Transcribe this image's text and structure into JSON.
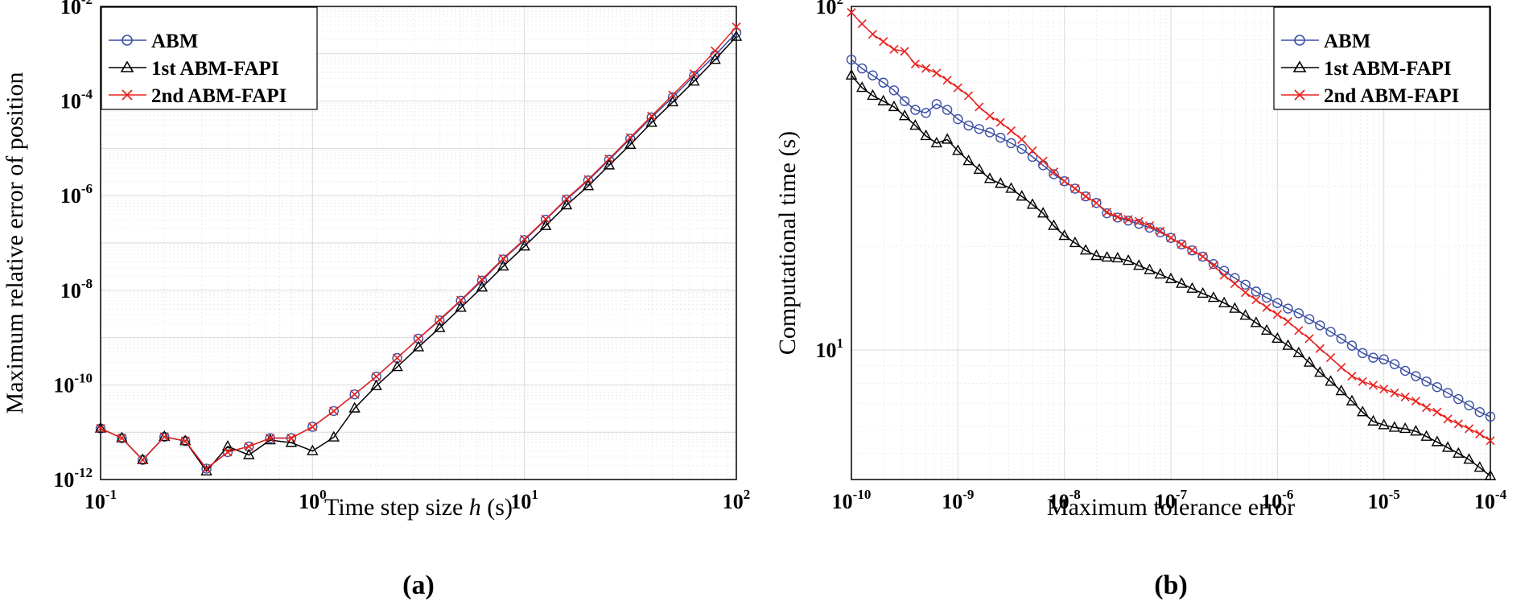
{
  "colors": {
    "abm": "#3a4fa3",
    "fapi1": "#000000",
    "fapi2": "#e8221d",
    "grid": "#d9d9d9",
    "minor_grid": "#ececec"
  },
  "chart_data": [
    {
      "id": "a",
      "type": "line",
      "panel_label": "(a)",
      "xlabel_pre": "Time step size ",
      "xlabel_var": "h",
      "xlabel_post": " (s)",
      "ylabel": "Maximum relative error of position",
      "xscale": "log",
      "yscale": "log",
      "xlim_exp": [
        -1,
        2
      ],
      "ylim_exp": [
        -12,
        -2
      ],
      "x_ticks": [
        {
          "base": "10",
          "exp": "-1",
          "v": -1
        },
        {
          "base": "10",
          "exp": "0",
          "v": 0
        },
        {
          "base": "10",
          "exp": "1",
          "v": 1
        },
        {
          "base": "10",
          "exp": "2",
          "v": 2
        }
      ],
      "y_ticks": [
        {
          "base": "10",
          "exp": "-12",
          "v": -12
        },
        {
          "base": "10",
          "exp": "-10",
          "v": -10
        },
        {
          "base": "10",
          "exp": "-8",
          "v": -8
        },
        {
          "base": "10",
          "exp": "-6",
          "v": -6
        },
        {
          "base": "10",
          "exp": "-4",
          "v": -4
        },
        {
          "base": "10",
          "exp": "-2",
          "v": -2
        }
      ],
      "grid": true,
      "legend_position": "top-left",
      "x": [
        0.1,
        0.126,
        0.158,
        0.2,
        0.251,
        0.316,
        0.398,
        0.501,
        0.631,
        0.794,
        1.0,
        1.26,
        1.58,
        2.0,
        2.51,
        3.16,
        3.98,
        5.01,
        6.31,
        7.94,
        10.0,
        12.6,
        15.8,
        20.0,
        25.1,
        31.6,
        39.8,
        50.1,
        63.1,
        79.4,
        100.0
      ],
      "series": [
        {
          "name": "ABM",
          "marker": "circle",
          "color_key": "abm",
          "values": [
            1.2e-11,
            7.5e-12,
            2.6e-12,
            8e-12,
            6.5e-12,
            1.7e-12,
            3.8e-12,
            5e-12,
            7.5e-12,
            7.5e-12,
            1.3e-11,
            2.8e-11,
            6.3e-11,
            1.5e-10,
            3.7e-10,
            9.5e-10,
            2.3e-09,
            6e-09,
            1.6e-08,
            4.5e-08,
            1.15e-07,
            3.1e-07,
            8.3e-07,
            2.1e-06,
            5.7e-06,
            1.6e-05,
            4.5e-05,
            0.00012,
            0.00034,
            0.00093,
            0.0028
          ]
        },
        {
          "name": "1st ABM-FAPI",
          "marker": "triangle",
          "color_key": "fapi1",
          "values": [
            1.2e-11,
            7.5e-12,
            2.6e-12,
            8e-12,
            6.5e-12,
            1.5e-12,
            5e-12,
            3.3e-12,
            6.8e-12,
            6e-12,
            4e-12,
            7.8e-12,
            3.2e-11,
            9.5e-11,
            2.4e-10,
            6.3e-10,
            1.6e-09,
            4.3e-09,
            1.15e-08,
            3.2e-08,
            8.5e-08,
            2.3e-07,
            6.3e-07,
            1.6e-06,
            4.4e-06,
            1.2e-05,
            3.5e-05,
            9.5e-05,
            0.00026,
            0.00075,
            0.0023
          ]
        },
        {
          "name": "2nd ABM-FAPI",
          "marker": "x",
          "color_key": "fapi2",
          "values": [
            1.2e-11,
            7.5e-12,
            2.6e-12,
            8e-12,
            6.5e-12,
            1.7e-12,
            3.8e-12,
            5e-12,
            7.5e-12,
            7.5e-12,
            1.3e-11,
            2.8e-11,
            6.3e-11,
            1.5e-10,
            3.7e-10,
            9.5e-10,
            2.4e-09,
            6.2e-09,
            1.7e-08,
            4.7e-08,
            1.2e-07,
            3.2e-07,
            8.6e-07,
            2.2e-06,
            6e-06,
            1.7e-05,
            4.8e-05,
            0.000135,
            0.00038,
            0.00115,
            0.0037
          ]
        }
      ]
    },
    {
      "id": "b",
      "type": "line",
      "panel_label": "(b)",
      "xlabel": "Maximum tolerance error",
      "ylabel": "Computational time (s)",
      "xscale": "log",
      "yscale": "log",
      "xlim_exp": [
        -10,
        -4
      ],
      "ylim": [
        4.2,
        100
      ],
      "x_ticks": [
        {
          "base": "10",
          "exp": "-10",
          "v": -10
        },
        {
          "base": "10",
          "exp": "-9",
          "v": -9
        },
        {
          "base": "10",
          "exp": "-8",
          "v": -8
        },
        {
          "base": "10",
          "exp": "-7",
          "v": -7
        },
        {
          "base": "10",
          "exp": "-6",
          "v": -6
        },
        {
          "base": "10",
          "exp": "-5",
          "v": -5
        },
        {
          "base": "10",
          "exp": "-4",
          "v": -4
        }
      ],
      "y_ticks": [
        {
          "base": "10",
          "exp": "1",
          "v": 10
        },
        {
          "base": "10",
          "exp": "2",
          "v": 100
        }
      ],
      "grid": true,
      "legend_position": "top-right",
      "x_exp": [
        -10,
        -9.9,
        -9.8,
        -9.7,
        -9.6,
        -9.5,
        -9.4,
        -9.3,
        -9.2,
        -9.1,
        -9.0,
        -8.9,
        -8.8,
        -8.7,
        -8.6,
        -8.5,
        -8.4,
        -8.3,
        -8.2,
        -8.1,
        -8.0,
        -7.9,
        -7.8,
        -7.7,
        -7.6,
        -7.5,
        -7.4,
        -7.3,
        -7.2,
        -7.1,
        -7.0,
        -6.9,
        -6.8,
        -6.7,
        -6.6,
        -6.5,
        -6.4,
        -6.3,
        -6.2,
        -6.1,
        -6.0,
        -5.9,
        -5.8,
        -5.7,
        -5.6,
        -5.5,
        -5.4,
        -5.3,
        -5.2,
        -5.1,
        -5.0,
        -4.9,
        -4.8,
        -4.7,
        -4.6,
        -4.5,
        -4.4,
        -4.3,
        -4.2,
        -4.1,
        -4.0
      ],
      "series": [
        {
          "name": "ABM",
          "marker": "circle",
          "color_key": "abm",
          "values": [
            70,
            66,
            63,
            60,
            57,
            53,
            50,
            49,
            52,
            50,
            47,
            45,
            44,
            43,
            41.5,
            40,
            38.5,
            36.5,
            34.5,
            32.5,
            31,
            29.5,
            28,
            26.8,
            25,
            24.3,
            23.8,
            23.3,
            22.7,
            22,
            21.2,
            20.3,
            19.5,
            18.7,
            17.8,
            17,
            16.2,
            15.5,
            14.8,
            14.2,
            13.7,
            13.2,
            12.8,
            12.3,
            11.8,
            11.3,
            10.8,
            10.3,
            9.8,
            9.5,
            9.4,
            9.1,
            8.7,
            8.4,
            8.1,
            7.8,
            7.5,
            7.2,
            6.9,
            6.6,
            6.4
          ]
        },
        {
          "name": "1st ABM-FAPI",
          "marker": "triangle",
          "color_key": "fapi1",
          "values": [
            63,
            58,
            55,
            53,
            51,
            48,
            45,
            42,
            40,
            41,
            38,
            35.5,
            33.5,
            31.5,
            30.5,
            29.5,
            28,
            26.5,
            25,
            23,
            21.5,
            20.5,
            19.5,
            18.8,
            18.6,
            18.5,
            18.2,
            17.6,
            17.1,
            16.6,
            16.1,
            15.6,
            15.1,
            14.6,
            14.2,
            13.7,
            13.2,
            12.6,
            12,
            11.4,
            10.8,
            10.3,
            9.8,
            9.2,
            8.6,
            8.1,
            7.6,
            7.1,
            6.6,
            6.2,
            6.05,
            5.95,
            5.9,
            5.8,
            5.6,
            5.4,
            5.2,
            5.0,
            4.8,
            4.55,
            4.3
          ]
        },
        {
          "name": "2nd ABM-FAPI",
          "marker": "x",
          "color_key": "fapi2",
          "values": [
            96,
            89,
            83,
            79,
            75,
            74,
            68,
            66,
            64,
            61,
            58,
            55,
            51,
            48,
            46,
            43.5,
            41,
            38,
            35.5,
            33,
            31,
            29.5,
            28,
            26.8,
            25.2,
            24.4,
            24,
            23.7,
            23,
            22.2,
            21.2,
            20.3,
            19.5,
            18.7,
            17.6,
            16.5,
            15.6,
            14.7,
            14,
            13.3,
            12.7,
            12.1,
            11.4,
            10.8,
            10.1,
            9.5,
            8.9,
            8.4,
            8.1,
            7.9,
            7.7,
            7.5,
            7.3,
            7.1,
            6.8,
            6.6,
            6.3,
            6.1,
            5.9,
            5.7,
            5.45
          ]
        }
      ]
    }
  ]
}
